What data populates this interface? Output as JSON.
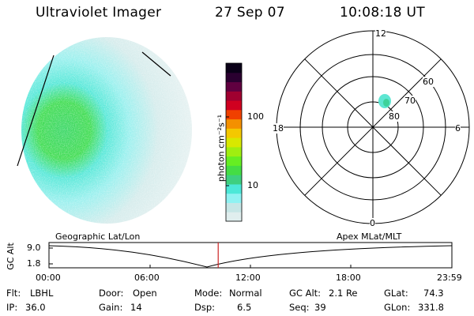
{
  "header": {
    "instrument": "Ultraviolet Imager",
    "date": "27 Sep 07",
    "time": "10:08:18 UT"
  },
  "colorbar": {
    "label": "photon cm⁻²s⁻¹",
    "ticks": [
      "100",
      "10"
    ],
    "scale": "log",
    "colors": [
      "#e0eeee",
      "#c6e6e6",
      "#8ff2f2",
      "#4ce8d8",
      "#3ecf7f",
      "#44dd44",
      "#66ee22",
      "#a0ee10",
      "#d8e800",
      "#f4c800",
      "#f49000",
      "#f04000",
      "#d00020",
      "#a00030",
      "#600040",
      "#2a0030",
      "#0a0018"
    ]
  },
  "polar_plot": {
    "mlt_labels": {
      "top": "12",
      "left": "18",
      "right": "6",
      "bottom": "0"
    },
    "lat_labels": [
      "60",
      "70",
      "80"
    ]
  },
  "timeline": {
    "left_label": "Geographic Lat/Lon",
    "right_label": "Apex MLat/MLT",
    "axis_title": "GC Alt",
    "y_ticks": [
      "9.0",
      "1.8"
    ],
    "x_ticks": [
      "00:00",
      "06:00",
      "12:00",
      "18:00",
      "23:59"
    ],
    "marker_color": "#cc2222",
    "current_time_fraction": 0.42
  },
  "info": {
    "flt_label": "Flt:",
    "flt_value": "LBHL",
    "ip_label": "IP:",
    "ip_value": "36.0",
    "door_label": "Door:",
    "door_value": "Open",
    "gain_label": "Gain:",
    "gain_value": "14",
    "mode_label": "Mode:",
    "mode_value": "Normal",
    "dsp_label": "Dsp:",
    "dsp_value": "6.5",
    "gcalt_label": "GC Alt:",
    "gcalt_value": "2.1 Re",
    "seq_label": "Seq:",
    "seq_value": "39",
    "glat_label": "GLat:",
    "glat_value": "74.3",
    "glon_label": "GLon:",
    "glon_value": "331.8"
  }
}
